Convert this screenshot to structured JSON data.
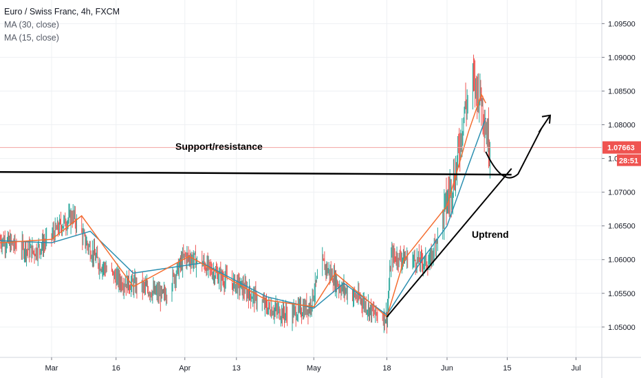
{
  "legend": {
    "symbol": "Euro / Swiss Franc, 4h, FXCM",
    "ma1": "MA (30, close)",
    "ma2": "MA (15, close)"
  },
  "colors": {
    "up": "#26a69a",
    "down": "#ef5350",
    "ma30": "#2b8fb0",
    "ma15": "#f46c2e",
    "grid": "#eef0f3",
    "annotation": "#000000",
    "price_tag": "#ef5350",
    "price_line": "#f2a3a1"
  },
  "chart_data": {
    "type": "candlestick",
    "title": "",
    "xlabel": "",
    "ylabel": "",
    "ylim": [
      1.0455,
      1.0985
    ],
    "y_ticks": [
      "1.05000",
      "1.05500",
      "1.06000",
      "1.06500",
      "1.07000",
      "1.07500",
      "1.08000",
      "1.08500",
      "1.09000",
      "1.09500"
    ],
    "x_ticks": [
      "Mar",
      "16",
      "Apr",
      "13",
      "May",
      "18",
      "Jun",
      "15",
      "Jul"
    ],
    "x_tick_dates": [
      "2020-03-01",
      "2020-03-16",
      "2020-04-01",
      "2020-04-13",
      "2020-05-01",
      "2020-05-18",
      "2020-06-01",
      "2020-06-15",
      "2020-07-01"
    ],
    "x_range": [
      "2020-02-18",
      "2020-07-07"
    ],
    "price_key": [
      {
        "date": "2020-02-18",
        "price": 1.063
      },
      {
        "date": "2020-02-21",
        "price": 1.0622
      },
      {
        "date": "2020-02-26",
        "price": 1.0612
      },
      {
        "date": "2020-02-29",
        "price": 1.0628
      },
      {
        "date": "2020-03-03",
        "price": 1.065
      },
      {
        "date": "2020-03-06",
        "price": 1.0665
      },
      {
        "date": "2020-03-09",
        "price": 1.0625
      },
      {
        "date": "2020-03-12",
        "price": 1.0595
      },
      {
        "date": "2020-03-17",
        "price": 1.0568
      },
      {
        "date": "2020-03-22",
        "price": 1.056
      },
      {
        "date": "2020-03-27",
        "price": 1.0545
      },
      {
        "date": "2020-04-01",
        "price": 1.0605
      },
      {
        "date": "2020-04-05",
        "price": 1.0595
      },
      {
        "date": "2020-04-09",
        "price": 1.0575
      },
      {
        "date": "2020-04-14",
        "price": 1.056
      },
      {
        "date": "2020-04-20",
        "price": 1.053
      },
      {
        "date": "2020-04-25",
        "price": 1.0518
      },
      {
        "date": "2020-04-30",
        "price": 1.053
      },
      {
        "date": "2020-05-03",
        "price": 1.0595
      },
      {
        "date": "2020-05-07",
        "price": 1.056
      },
      {
        "date": "2020-05-12",
        "price": 1.054
      },
      {
        "date": "2020-05-15",
        "price": 1.052
      },
      {
        "date": "2020-05-18",
        "price": 1.0515
      },
      {
        "date": "2020-05-19",
        "price": 1.0605
      },
      {
        "date": "2020-05-24",
        "price": 1.06
      },
      {
        "date": "2020-05-28",
        "price": 1.0595
      },
      {
        "date": "2020-05-31",
        "price": 1.0665
      },
      {
        "date": "2020-06-03",
        "price": 1.073
      },
      {
        "date": "2020-06-05",
        "price": 1.082
      },
      {
        "date": "2020-06-07",
        "price": 1.0865
      },
      {
        "date": "2020-06-09",
        "price": 1.084
      },
      {
        "date": "2020-06-10",
        "price": 1.0795
      },
      {
        "date": "2020-06-11",
        "price": 1.0766
      }
    ],
    "series": [
      {
        "name": "MA (30, close)",
        "points": [
          {
            "date": "2020-02-18",
            "price": 1.0628
          },
          {
            "date": "2020-03-01",
            "price": 1.0625
          },
          {
            "date": "2020-03-10",
            "price": 1.0642
          },
          {
            "date": "2020-03-20",
            "price": 1.058
          },
          {
            "date": "2020-04-05",
            "price": 1.0595
          },
          {
            "date": "2020-04-20",
            "price": 1.0545
          },
          {
            "date": "2020-05-01",
            "price": 1.0528
          },
          {
            "date": "2020-05-08",
            "price": 1.0565
          },
          {
            "date": "2020-05-18",
            "price": 1.0518
          },
          {
            "date": "2020-05-26",
            "price": 1.0598
          },
          {
            "date": "2020-06-01",
            "price": 1.065
          },
          {
            "date": "2020-06-06",
            "price": 1.074
          },
          {
            "date": "2020-06-10",
            "price": 1.081
          }
        ]
      },
      {
        "name": "MA (15, close)",
        "points": [
          {
            "date": "2020-02-18",
            "price": 1.0625
          },
          {
            "date": "2020-03-01",
            "price": 1.063
          },
          {
            "date": "2020-03-08",
            "price": 1.0665
          },
          {
            "date": "2020-03-20",
            "price": 1.056
          },
          {
            "date": "2020-04-02",
            "price": 1.0605
          },
          {
            "date": "2020-04-20",
            "price": 1.054
          },
          {
            "date": "2020-05-01",
            "price": 1.053
          },
          {
            "date": "2020-05-06",
            "price": 1.058
          },
          {
            "date": "2020-05-18",
            "price": 1.0515
          },
          {
            "date": "2020-05-22",
            "price": 1.06
          },
          {
            "date": "2020-06-01",
            "price": 1.068
          },
          {
            "date": "2020-06-06",
            "price": 1.079
          },
          {
            "date": "2020-06-09",
            "price": 1.0845
          },
          {
            "date": "2020-06-10",
            "price": 1.0832
          }
        ]
      }
    ],
    "last_price": {
      "value": "1.07663",
      "countdown": "28:51"
    },
    "annotations": [
      {
        "text": "Support/resistance"
      },
      {
        "text": "Uptrend"
      }
    ],
    "drawn_lines": {
      "support_resistance": [
        {
          "date": "2020-02-18",
          "price": 1.073
        },
        {
          "date": "2020-06-16",
          "price": 1.0726
        }
      ],
      "uptrend": [
        {
          "date": "2020-05-18",
          "price": 1.0515
        },
        {
          "date": "2020-06-16",
          "price": 1.0735
        }
      ],
      "projection_arrow": [
        {
          "date": "2020-06-10",
          "price": 1.076
        },
        {
          "date": "2020-06-14",
          "price": 1.0727
        },
        {
          "date": "2020-06-23",
          "price": 1.0795
        },
        {
          "date": "2020-06-25",
          "price": 1.0814
        }
      ]
    }
  }
}
